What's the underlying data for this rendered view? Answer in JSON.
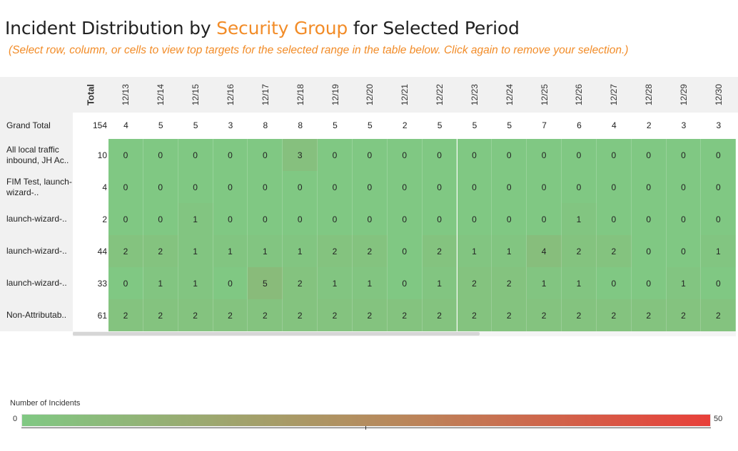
{
  "title": {
    "prefix": "Incident Distribution by ",
    "highlight": "Security Group",
    "suffix": " for Selected Period"
  },
  "subtitle": "(Select row, column, or cells to view top targets for the selected range in the table below.  Click again to remove your selection.)",
  "table": {
    "total_header": "Total",
    "columns": [
      "12/13",
      "12/14",
      "12/15",
      "12/16",
      "12/17",
      "12/18",
      "12/19",
      "12/20",
      "12/21",
      "12/22",
      "12/23",
      "12/24",
      "12/25",
      "12/26",
      "12/27",
      "12/28",
      "12/29",
      "12/30"
    ],
    "grand_total": {
      "label": "Grand Total",
      "total": "154",
      "values": [
        4,
        5,
        5,
        3,
        8,
        8,
        5,
        5,
        2,
        5,
        5,
        5,
        7,
        6,
        4,
        2,
        3,
        3
      ]
    },
    "rows": [
      {
        "label": "All local traffic inbound, JH Ac..",
        "total": "10",
        "values": [
          0,
          0,
          0,
          0,
          0,
          3,
          0,
          0,
          0,
          0,
          0,
          0,
          0,
          0,
          0,
          0,
          0,
          0
        ]
      },
      {
        "label": "FIM Test, launch-wizard-..",
        "total": "4",
        "values": [
          0,
          0,
          0,
          0,
          0,
          0,
          0,
          0,
          0,
          0,
          0,
          0,
          0,
          0,
          0,
          0,
          0,
          0
        ]
      },
      {
        "label": "launch-wizard-..",
        "total": "2",
        "values": [
          0,
          0,
          1,
          0,
          0,
          0,
          0,
          0,
          0,
          0,
          0,
          0,
          0,
          1,
          0,
          0,
          0,
          0
        ]
      },
      {
        "label": "launch-wizard-..",
        "total": "44",
        "values": [
          2,
          2,
          1,
          1,
          1,
          1,
          2,
          2,
          0,
          2,
          1,
          1,
          4,
          2,
          2,
          0,
          0,
          1
        ]
      },
      {
        "label": "launch-wizard-..",
        "total": "33",
        "values": [
          0,
          1,
          1,
          0,
          5,
          2,
          1,
          1,
          0,
          1,
          2,
          2,
          1,
          1,
          0,
          0,
          1,
          0
        ]
      },
      {
        "label": "Non-Attributab..",
        "total": "61",
        "values": [
          2,
          2,
          2,
          2,
          2,
          2,
          2,
          2,
          2,
          2,
          2,
          2,
          2,
          2,
          2,
          2,
          2,
          2
        ]
      }
    ]
  },
  "legend": {
    "title": "Number of Incidents",
    "min": "0",
    "max": "50",
    "color_low": "#80c883",
    "color_high": "#e8403a"
  }
}
